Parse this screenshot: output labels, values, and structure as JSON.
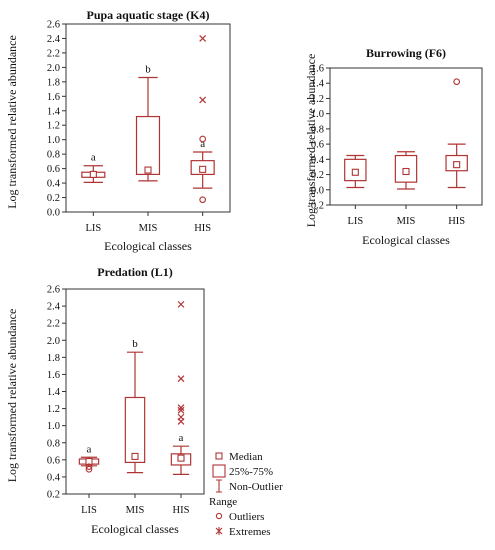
{
  "colors": {
    "box": "#b03434",
    "axis": "#333333",
    "text": "#111111"
  },
  "chart_data": [
    {
      "type": "boxplot",
      "title": "Pupa aquatic stage (K4)",
      "xlabel": "Ecological classes",
      "ylabel": "Log transformed relative abundance",
      "categories": [
        "LIS",
        "MIS",
        "HIS"
      ],
      "ylim": [
        0,
        2.6
      ],
      "yticks": [
        0.0,
        0.2,
        0.4,
        0.6,
        0.8,
        1.0,
        1.2,
        1.4,
        1.6,
        1.8,
        2.0,
        2.2,
        2.4,
        2.6
      ],
      "grid": false,
      "boxes": [
        {
          "category": "LIS",
          "median": 0.52,
          "q1": 0.48,
          "q3": 0.55,
          "whisker_low": 0.41,
          "whisker_high": 0.64,
          "outliers": [],
          "extremes": [],
          "letter": "a"
        },
        {
          "category": "MIS",
          "median": 0.58,
          "q1": 0.52,
          "q3": 1.32,
          "whisker_low": 0.43,
          "whisker_high": 1.86,
          "outliers": [],
          "extremes": [],
          "letter": "b"
        },
        {
          "category": "HIS",
          "median": 0.59,
          "q1": 0.52,
          "q3": 0.71,
          "whisker_low": 0.33,
          "whisker_high": 0.83,
          "outliers": [
            0.17,
            1.01
          ],
          "extremes": [
            1.55,
            2.4
          ],
          "letter": "a"
        }
      ]
    },
    {
      "type": "boxplot",
      "title": "Burrowing (F6)",
      "xlabel": "Ecological classes",
      "ylabel": "Log transformed relative abundance",
      "categories": [
        "LIS",
        "MIS",
        "HIS"
      ],
      "ylim": [
        -0.2,
        1.6
      ],
      "yticks": [
        -0.2,
        0.0,
        0.2,
        0.4,
        0.6,
        0.8,
        1.0,
        1.2,
        1.4,
        1.6
      ],
      "grid": false,
      "boxes": [
        {
          "category": "LIS",
          "median": 0.23,
          "q1": 0.12,
          "q3": 0.4,
          "whisker_low": 0.03,
          "whisker_high": 0.45,
          "outliers": [],
          "extremes": [],
          "letter": ""
        },
        {
          "category": "MIS",
          "median": 0.24,
          "q1": 0.1,
          "q3": 0.45,
          "whisker_low": 0.01,
          "whisker_high": 0.5,
          "outliers": [],
          "extremes": [],
          "letter": ""
        },
        {
          "category": "HIS",
          "median": 0.33,
          "q1": 0.25,
          "q3": 0.45,
          "whisker_low": 0.03,
          "whisker_high": 0.6,
          "outliers": [
            1.42
          ],
          "extremes": [],
          "letter": ""
        }
      ]
    },
    {
      "type": "boxplot",
      "title": "Predation (L1)",
      "xlabel": "Ecological classes",
      "ylabel": "Log transformed relative abundance",
      "categories": [
        "LIS",
        "MIS",
        "HIS"
      ],
      "ylim": [
        0.2,
        2.6
      ],
      "yticks": [
        0.2,
        0.4,
        0.6,
        0.8,
        1.0,
        1.2,
        1.4,
        1.6,
        1.8,
        2.0,
        2.2,
        2.4,
        2.6
      ],
      "grid": false,
      "boxes": [
        {
          "category": "LIS",
          "median": 0.58,
          "q1": 0.55,
          "q3": 0.61,
          "whisker_low": 0.53,
          "whisker_high": 0.63,
          "outliers": [
            0.49,
            0.52
          ],
          "extremes": [],
          "letter": "a"
        },
        {
          "category": "MIS",
          "median": 0.64,
          "q1": 0.57,
          "q3": 1.33,
          "whisker_low": 0.45,
          "whisker_high": 1.86,
          "outliers": [],
          "extremes": [],
          "letter": "b"
        },
        {
          "category": "HIS",
          "median": 0.62,
          "q1": 0.54,
          "q3": 0.67,
          "whisker_low": 0.43,
          "whisker_high": 0.76,
          "outliers": [],
          "extremes": [
            1.05,
            1.1,
            1.18,
            1.21,
            1.55,
            2.42
          ],
          "letter": "a"
        }
      ],
      "legend": {
        "position": "right",
        "entries": [
          {
            "symbol": "median",
            "label": "Median"
          },
          {
            "symbol": "box",
            "label": "25%-75%"
          },
          {
            "symbol": "whisker",
            "label": "Non-Outlier"
          },
          {
            "symbol": "none",
            "label": "Range"
          },
          {
            "symbol": "outlier",
            "label": "Outliers"
          },
          {
            "symbol": "extreme",
            "label": "Extremes"
          }
        ]
      }
    }
  ]
}
